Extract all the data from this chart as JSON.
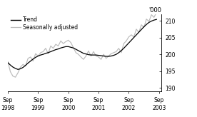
{
  "ylabel_right": "'000",
  "ylim": [
    189,
    212
  ],
  "yticks": [
    190,
    195,
    200,
    205,
    210
  ],
  "xlim": [
    0,
    61
  ],
  "xtick_positions": [
    0,
    12,
    24,
    36,
    48,
    60
  ],
  "xtick_labels": [
    "Sep\n1998",
    "Sep\n1999",
    "Sep\n2000",
    "Sep\n2001",
    "Sep\n2002",
    "Sep\n2003"
  ],
  "legend_entries": [
    "Trend",
    "Seasonally adjusted"
  ],
  "trend_color": "#000000",
  "seasonal_color": "#bbbbbb",
  "trend_linewidth": 0.9,
  "seasonal_linewidth": 0.85,
  "background_color": "#ffffff",
  "trend_data": [
    197.5,
    196.8,
    196.2,
    195.8,
    195.5,
    195.7,
    196.1,
    196.7,
    197.4,
    198.0,
    198.6,
    199.1,
    199.5,
    199.8,
    200.0,
    200.3,
    200.5,
    200.8,
    201.1,
    201.4,
    201.6,
    201.9,
    202.1,
    202.3,
    202.3,
    202.1,
    201.9,
    201.5,
    201.1,
    200.7,
    200.3,
    200.1,
    199.9,
    199.8,
    199.8,
    199.8,
    199.7,
    199.6,
    199.5,
    199.4,
    199.4,
    199.5,
    199.7,
    200.0,
    200.5,
    201.1,
    201.8,
    202.6,
    203.4,
    204.2,
    205.0,
    205.8,
    206.6,
    207.4,
    208.2,
    208.9,
    209.5,
    209.9,
    210.2,
    210.4
  ],
  "seasonal_data": [
    197.8,
    194.8,
    193.5,
    193.2,
    194.5,
    196.2,
    197.0,
    196.5,
    198.8,
    199.2,
    198.0,
    200.2,
    199.5,
    200.5,
    200.8,
    201.8,
    200.2,
    202.5,
    201.8,
    203.0,
    202.5,
    204.0,
    203.2,
    203.8,
    204.2,
    203.5,
    202.0,
    200.5,
    200.0,
    199.2,
    198.5,
    199.5,
    201.0,
    199.5,
    200.8,
    199.5,
    199.2,
    198.5,
    200.0,
    198.8,
    199.5,
    200.2,
    200.5,
    200.8,
    201.8,
    200.5,
    203.2,
    204.0,
    205.2,
    205.8,
    205.2,
    207.5,
    206.5,
    208.8,
    208.0,
    210.5,
    209.8,
    211.8,
    211.0,
    212.5
  ]
}
